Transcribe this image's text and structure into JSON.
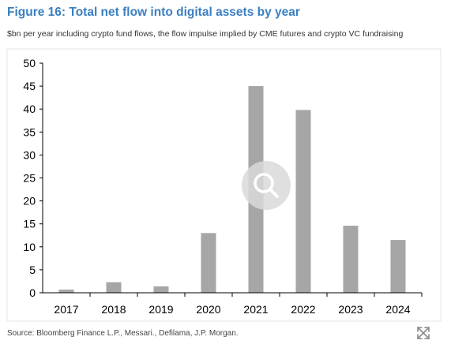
{
  "figure": {
    "title": "Figure 16: Total net flow into digital assets by year",
    "subtitle": "$bn per year including crypto fund flows, the flow impulse implied by CME futures and crypto VC fundraising",
    "source": "Source: Bloomberg Finance L.P., Messari., Defilama, J.P. Morgan."
  },
  "chart_data": {
    "type": "bar",
    "categories": [
      "2017",
      "2018",
      "2019",
      "2020",
      "2021",
      "2022",
      "2023",
      "2024"
    ],
    "values": [
      0.7,
      2.3,
      1.4,
      13,
      45,
      39.8,
      14.6,
      11.5
    ],
    "ylim": [
      0,
      50
    ],
    "yticks": [
      0,
      5,
      10,
      15,
      20,
      25,
      30,
      35,
      40,
      45,
      50
    ],
    "grid": false,
    "bar_color": "#a6a6a6"
  },
  "icons": {
    "zoom": "magnifier-icon",
    "expand": "expand-arrows-icon"
  }
}
